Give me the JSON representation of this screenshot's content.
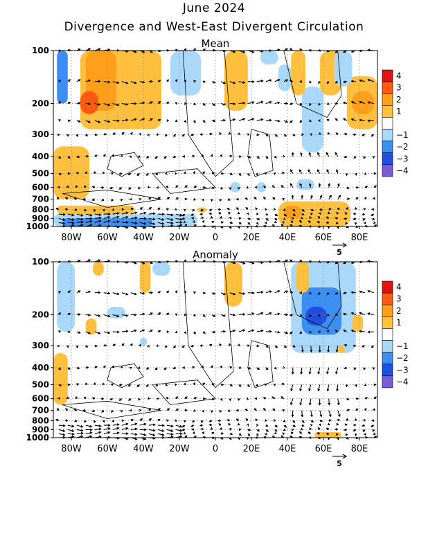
{
  "title": "June 2024",
  "subtitle": "Divergence and West-East Divergent Circulation",
  "colors": {
    "neg4": "#7a5cd6",
    "neg3": "#1f4fe0",
    "neg2": "#3d8ef2",
    "neg1": "#a9d8fa",
    "zero": "#ffffff",
    "pos1": "#ffc040",
    "pos2": "#ff9f1a",
    "pos3": "#ff5a10",
    "pos4": "#e01212"
  },
  "chart_data": [
    {
      "type": "contour",
      "panel_title": "Mean",
      "x_ticks": [
        "80W",
        "60W",
        "40W",
        "20W",
        "0",
        "20E",
        "40E",
        "60E",
        "80E"
      ],
      "x_tick_values": [
        -80,
        -60,
        -40,
        -20,
        0,
        20,
        40,
        60,
        80
      ],
      "xlim": [
        -90,
        90
      ],
      "y_ticks": [
        "100",
        "200",
        "300",
        "400",
        "500",
        "600",
        "700",
        "800",
        "900",
        "1000"
      ],
      "y_tick_values": [
        100,
        200,
        300,
        400,
        500,
        600,
        700,
        800,
        900,
        1000
      ],
      "ylim": [
        1000,
        100
      ],
      "y_scale": "log",
      "grid": "dotted",
      "vector_reference": "5",
      "regions": [
        {
          "level": -2,
          "lon": [
            -88,
            -82
          ],
          "p": [
            100,
            200
          ]
        },
        {
          "level": 1,
          "lon": [
            -75,
            -30
          ],
          "p": [
            100,
            280
          ]
        },
        {
          "level": 2,
          "lon": [
            -72,
            -55
          ],
          "p": [
            100,
            220
          ]
        },
        {
          "level": 3,
          "lon": [
            -75,
            -65
          ],
          "p": [
            170,
            230
          ]
        },
        {
          "level": 1,
          "lon": [
            -52,
            -35
          ],
          "p": [
            100,
            160
          ]
        },
        {
          "level": -1,
          "lon": [
            -25,
            -8
          ],
          "p": [
            100,
            180
          ]
        },
        {
          "level": 1,
          "lon": [
            5,
            18
          ],
          "p": [
            100,
            220
          ]
        },
        {
          "level": -1,
          "lon": [
            25,
            35
          ],
          "p": [
            100,
            120
          ]
        },
        {
          "level": -1,
          "lon": [
            35,
            42
          ],
          "p": [
            120,
            170
          ]
        },
        {
          "level": -1,
          "lon": [
            48,
            60
          ],
          "p": [
            160,
            380
          ]
        },
        {
          "level": 1,
          "lon": [
            42,
            50
          ],
          "p": [
            100,
            180
          ]
        },
        {
          "level": 1,
          "lon": [
            58,
            70
          ],
          "p": [
            100,
            180
          ]
        },
        {
          "level": 1,
          "lon": [
            73,
            90
          ],
          "p": [
            140,
            280
          ]
        },
        {
          "level": 2,
          "lon": [
            76,
            88
          ],
          "p": [
            170,
            230
          ]
        },
        {
          "level": -1,
          "lon": [
            66,
            76
          ],
          "p": [
            100,
            160
          ]
        },
        {
          "level": 1,
          "lon": [
            -90,
            -70
          ],
          "p": [
            350,
            700
          ]
        },
        {
          "level": 1,
          "lon": [
            -88,
            -45
          ],
          "p": [
            760,
            850
          ]
        },
        {
          "level": -1,
          "lon": [
            -90,
            -10
          ],
          "p": [
            850,
            1000
          ]
        },
        {
          "level": -2,
          "lon": [
            -85,
            -35
          ],
          "p": [
            900,
            1000
          ]
        },
        {
          "level": 1,
          "lon": [
            -10,
            -5
          ],
          "p": [
            780,
            830
          ]
        },
        {
          "level": -1,
          "lon": [
            8,
            14
          ],
          "p": [
            560,
            640
          ]
        },
        {
          "level": -1,
          "lon": [
            23,
            28
          ],
          "p": [
            560,
            640
          ]
        },
        {
          "level": -1,
          "lon": [
            45,
            55
          ],
          "p": [
            540,
            620
          ]
        },
        {
          "level": 1,
          "lon": [
            35,
            75
          ],
          "p": [
            720,
            1000
          ]
        },
        {
          "level": 2,
          "lon": [
            38,
            48
          ],
          "p": [
            760,
            900
          ]
        }
      ]
    },
    {
      "type": "contour",
      "panel_title": "Anomaly",
      "x_ticks": [
        "80W",
        "60W",
        "40W",
        "20W",
        "0",
        "20E",
        "40E",
        "60E",
        "80E"
      ],
      "x_tick_values": [
        -80,
        -60,
        -40,
        -20,
        0,
        20,
        40,
        60,
        80
      ],
      "xlim": [
        -90,
        90
      ],
      "y_ticks": [
        "100",
        "200",
        "300",
        "400",
        "500",
        "600",
        "700",
        "800",
        "900",
        "1000"
      ],
      "y_tick_values": [
        100,
        200,
        300,
        400,
        500,
        600,
        700,
        800,
        900,
        1000
      ],
      "ylim": [
        1000,
        100
      ],
      "y_scale": "log",
      "grid": "dotted",
      "vector_reference": "5",
      "regions": [
        {
          "level": -1,
          "lon": [
            -88,
            -78
          ],
          "p": [
            100,
            250
          ]
        },
        {
          "level": 1,
          "lon": [
            -68,
            -62
          ],
          "p": [
            100,
            120
          ]
        },
        {
          "level": 1,
          "lon": [
            -42,
            -36
          ],
          "p": [
            100,
            150
          ]
        },
        {
          "level": -1,
          "lon": [
            -35,
            -25
          ],
          "p": [
            100,
            120
          ]
        },
        {
          "level": 1,
          "lon": [
            5,
            15
          ],
          "p": [
            100,
            180
          ]
        },
        {
          "level": 1,
          "lon": [
            -72,
            -66
          ],
          "p": [
            210,
            260
          ]
        },
        {
          "level": 1,
          "lon": [
            -90,
            -82
          ],
          "p": [
            330,
            650
          ]
        },
        {
          "level": -1,
          "lon": [
            -60,
            -50
          ],
          "p": [
            180,
            210
          ]
        },
        {
          "level": -1,
          "lon": [
            42,
            78
          ],
          "p": [
            100,
            330
          ]
        },
        {
          "level": -2,
          "lon": [
            48,
            70
          ],
          "p": [
            140,
            260
          ]
        },
        {
          "level": -3,
          "lon": [
            50,
            62
          ],
          "p": [
            180,
            230
          ]
        },
        {
          "level": 1,
          "lon": [
            45,
            52
          ],
          "p": [
            100,
            150
          ]
        },
        {
          "level": 1,
          "lon": [
            76,
            82
          ],
          "p": [
            200,
            250
          ]
        },
        {
          "level": 1,
          "lon": [
            68,
            72
          ],
          "p": [
            300,
            330
          ]
        },
        {
          "level": 1,
          "lon": [
            55,
            70
          ],
          "p": [
            930,
            1000
          ]
        },
        {
          "level": -1,
          "lon": [
            -42,
            -38
          ],
          "p": [
            270,
            300
          ]
        }
      ]
    }
  ]
}
